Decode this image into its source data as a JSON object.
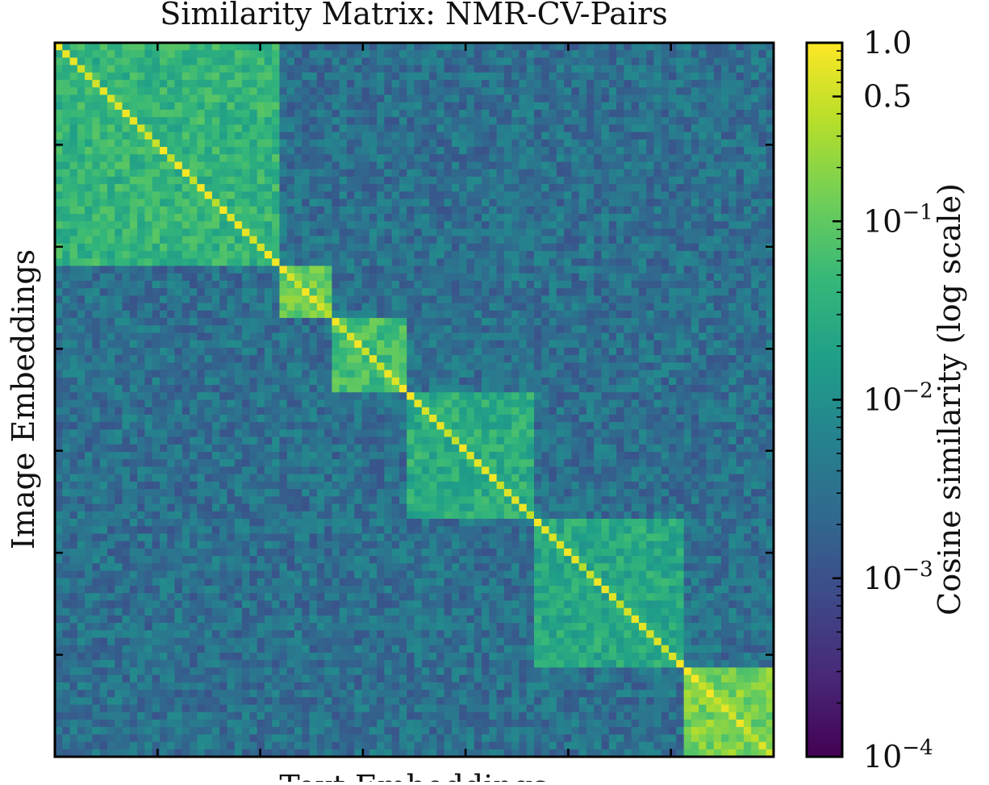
{
  "chart_data": {
    "type": "heatmap",
    "title": "Similarity Matrix: NMR-CV-Pairs",
    "xlabel": "Text Embeddings",
    "ylabel": "Image Embeddings",
    "x_tick_labels": [],
    "y_tick_labels": [],
    "colorbar": {
      "label": "Cosine similarity (log scale)",
      "scale": "log",
      "colormap": "viridis",
      "range": [
        0.0001,
        1.0
      ],
      "ticks": [
        {
          "value": 1.0,
          "label": "1.0"
        },
        {
          "value": 0.5,
          "label": "0.5"
        },
        {
          "value": 0.1,
          "base": "10",
          "exp": "−1"
        },
        {
          "value": 0.01,
          "base": "10",
          "exp": "−2"
        },
        {
          "value": 0.001,
          "base": "10",
          "exp": "−3"
        },
        {
          "value": 0.0001,
          "base": "10",
          "exp": "−4"
        }
      ]
    },
    "diagonal_value": 1.0,
    "background_level": 0.003,
    "blocks": [
      {
        "start": 0.0,
        "end": 0.31,
        "value": 0.04
      },
      {
        "start": 0.31,
        "end": 0.39,
        "value": 0.12
      },
      {
        "start": 0.39,
        "end": 0.49,
        "value": 0.06
      },
      {
        "start": 0.49,
        "end": 0.67,
        "value": 0.03
      },
      {
        "start": 0.67,
        "end": 0.88,
        "value": 0.025
      },
      {
        "start": 0.88,
        "end": 1.0,
        "value": 0.15
      }
    ],
    "colors": {
      "viridis": [
        "#440154",
        "#482878",
        "#3e4989",
        "#31688e",
        "#26828e",
        "#1f9e89",
        "#35b779",
        "#6ece58",
        "#b5de2b",
        "#fde725"
      ]
    }
  }
}
